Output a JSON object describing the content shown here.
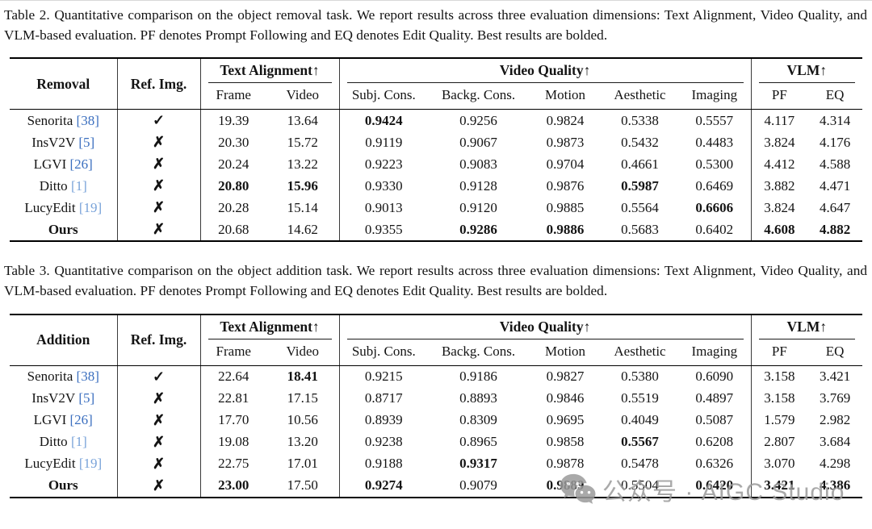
{
  "icons": {
    "check": "✓",
    "cross": "✗",
    "wechat": "wechat-icon"
  },
  "colors": {
    "cite_deep_blue": "#3b6fbf",
    "cite_light_blue": "#79a3d9",
    "watermark_gray": "#9b9b9b"
  },
  "watermark": {
    "text": "公众号 · AIGC Studio"
  },
  "tables": [
    {
      "caption": "Table 2. Quantitative comparison on the object removal task. We report results across three evaluation dimensions: Text Alignment, Video Quality, and VLM-based evaluation. PF denotes Prompt Following and EQ denotes Edit Quality. Best results are bolded.",
      "task_label": "Removal",
      "ref_img_label": "Ref. Img.",
      "group_text_alignment": "Text Alignment↑",
      "group_video_quality": "Video Quality↑",
      "group_vlm": "VLM↑",
      "subheaders": [
        "Frame",
        "Video",
        "Subj. Cons.",
        "Backg. Cons.",
        "Motion",
        "Aesthetic",
        "Imaging",
        "PF",
        "EQ"
      ],
      "rows": [
        {
          "method": "Senorita",
          "cite": "[38]",
          "cite_color": "#3b6fbf",
          "method_bold": false,
          "ref_img": true,
          "values": [
            "19.39",
            "13.64",
            "0.9424",
            "0.9256",
            "0.9824",
            "0.5338",
            "0.5557",
            "4.117",
            "4.314"
          ],
          "bold": [
            0,
            0,
            1,
            0,
            0,
            0,
            0,
            0,
            0
          ]
        },
        {
          "method": "InsV2V",
          "cite": "[5]",
          "cite_color": "#3b6fbf",
          "method_bold": false,
          "ref_img": false,
          "values": [
            "20.30",
            "15.72",
            "0.9119",
            "0.9067",
            "0.9873",
            "0.5432",
            "0.4483",
            "3.824",
            "4.176"
          ],
          "bold": [
            0,
            0,
            0,
            0,
            0,
            0,
            0,
            0,
            0
          ]
        },
        {
          "method": "LGVI",
          "cite": "[26]",
          "cite_color": "#3b6fbf",
          "method_bold": false,
          "ref_img": false,
          "values": [
            "20.24",
            "13.22",
            "0.9223",
            "0.9083",
            "0.9704",
            "0.4661",
            "0.5300",
            "4.412",
            "4.588"
          ],
          "bold": [
            0,
            0,
            0,
            0,
            0,
            0,
            0,
            0,
            0
          ]
        },
        {
          "method": "Ditto",
          "cite": "[1]",
          "cite_color": "#79a3d9",
          "method_bold": false,
          "ref_img": false,
          "values": [
            "20.80",
            "15.96",
            "0.9330",
            "0.9128",
            "0.9876",
            "0.5987",
            "0.6469",
            "3.882",
            "4.471"
          ],
          "bold": [
            1,
            1,
            0,
            0,
            0,
            1,
            0,
            0,
            0
          ]
        },
        {
          "method": "LucyEdit",
          "cite": "[19]",
          "cite_color": "#79a3d9",
          "method_bold": false,
          "ref_img": false,
          "values": [
            "20.28",
            "15.14",
            "0.9013",
            "0.9120",
            "0.9885",
            "0.5564",
            "0.6606",
            "3.824",
            "4.647"
          ],
          "bold": [
            0,
            0,
            0,
            0,
            0,
            0,
            1,
            0,
            0
          ]
        },
        {
          "method": "Ours",
          "cite": "",
          "cite_color": "",
          "method_bold": true,
          "ref_img": false,
          "values": [
            "20.68",
            "14.62",
            "0.9355",
            "0.9286",
            "0.9886",
            "0.5683",
            "0.6402",
            "4.608",
            "4.882"
          ],
          "bold": [
            0,
            0,
            0,
            1,
            1,
            0,
            0,
            1,
            1
          ]
        }
      ]
    },
    {
      "caption": "Table 3. Quantitative comparison on the object addition task. We report results across three evaluation dimensions: Text Alignment, Video Quality, and VLM-based evaluation. PF denotes Prompt Following and EQ denotes Edit Quality. Best results are bolded.",
      "task_label": "Addition",
      "ref_img_label": "Ref. Img.",
      "group_text_alignment": "Text Alignment↑",
      "group_video_quality": "Video Quality↑",
      "group_vlm": "VLM↑",
      "subheaders": [
        "Frame",
        "Video",
        "Subj. Cons.",
        "Backg. Cons.",
        "Motion",
        "Aesthetic",
        "Imaging",
        "PF",
        "EQ"
      ],
      "rows": [
        {
          "method": "Senorita",
          "cite": "[38]",
          "cite_color": "#3b6fbf",
          "method_bold": false,
          "ref_img": true,
          "values": [
            "22.64",
            "18.41",
            "0.9215",
            "0.9186",
            "0.9827",
            "0.5380",
            "0.6090",
            "3.158",
            "3.421"
          ],
          "bold": [
            0,
            1,
            0,
            0,
            0,
            0,
            0,
            0,
            0
          ]
        },
        {
          "method": "InsV2V",
          "cite": "[5]",
          "cite_color": "#3b6fbf",
          "method_bold": false,
          "ref_img": false,
          "values": [
            "22.81",
            "17.15",
            "0.8717",
            "0.8893",
            "0.9846",
            "0.5519",
            "0.4897",
            "3.158",
            "3.769"
          ],
          "bold": [
            0,
            0,
            0,
            0,
            0,
            0,
            0,
            0,
            0
          ]
        },
        {
          "method": "LGVI",
          "cite": "[26]",
          "cite_color": "#3b6fbf",
          "method_bold": false,
          "ref_img": false,
          "values": [
            "17.70",
            "10.56",
            "0.8939",
            "0.8309",
            "0.9695",
            "0.4049",
            "0.5087",
            "1.579",
            "2.982"
          ],
          "bold": [
            0,
            0,
            0,
            0,
            0,
            0,
            0,
            0,
            0
          ]
        },
        {
          "method": "Ditto",
          "cite": "[1]",
          "cite_color": "#79a3d9",
          "method_bold": false,
          "ref_img": false,
          "values": [
            "19.08",
            "13.20",
            "0.9238",
            "0.8965",
            "0.9858",
            "0.5567",
            "0.6208",
            "2.807",
            "3.684"
          ],
          "bold": [
            0,
            0,
            0,
            0,
            0,
            1,
            0,
            0,
            0
          ]
        },
        {
          "method": "LucyEdit",
          "cite": "[19]",
          "cite_color": "#79a3d9",
          "method_bold": false,
          "ref_img": false,
          "values": [
            "22.75",
            "17.01",
            "0.9188",
            "0.9317",
            "0.9878",
            "0.5478",
            "0.6326",
            "3.070",
            "4.298"
          ],
          "bold": [
            0,
            0,
            0,
            1,
            0,
            0,
            0,
            0,
            0
          ]
        },
        {
          "method": "Ours",
          "cite": "",
          "cite_color": "",
          "method_bold": true,
          "ref_img": false,
          "values": [
            "23.00",
            "17.50",
            "0.9274",
            "0.9079",
            "0.9889",
            "0.5504",
            "0.6420",
            "3.421",
            "4.386"
          ],
          "bold": [
            1,
            0,
            1,
            0,
            1,
            0,
            1,
            1,
            1
          ]
        }
      ]
    }
  ]
}
